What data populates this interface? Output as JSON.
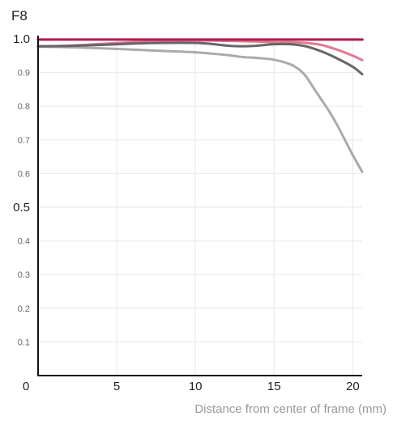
{
  "chart_data": {
    "type": "line",
    "title": "F8",
    "xlabel": "Distance from center of frame (mm)",
    "ylabel": "",
    "xlim": [
      0,
      20.6
    ],
    "ylim": [
      0,
      1.0
    ],
    "x_ticks": [
      {
        "value": 0,
        "label": "0"
      },
      {
        "value": 5,
        "label": "5"
      },
      {
        "value": 10,
        "label": "10"
      },
      {
        "value": 15,
        "label": "15"
      },
      {
        "value": 20,
        "label": "20"
      }
    ],
    "y_ticks": [
      {
        "value": 1.0,
        "label": "1.0",
        "major": true
      },
      {
        "value": 0.9,
        "label": "0.9",
        "major": false
      },
      {
        "value": 0.8,
        "label": "0.8",
        "major": false
      },
      {
        "value": 0.7,
        "label": "0.7",
        "major": false
      },
      {
        "value": 0.6,
        "label": "0.6",
        "major": false
      },
      {
        "value": 0.5,
        "label": "0.5",
        "major": true
      },
      {
        "value": 0.4,
        "label": "0.4",
        "major": false
      },
      {
        "value": 0.3,
        "label": "0.3",
        "major": false
      },
      {
        "value": 0.2,
        "label": "0.2",
        "major": false
      },
      {
        "value": 0.1,
        "label": "0.1",
        "major": false
      }
    ],
    "grid": true,
    "series": [
      {
        "color": "#aaaaaa",
        "x": [
          0,
          2,
          4,
          6,
          8,
          10,
          12,
          13,
          14,
          15,
          16,
          16.5,
          17,
          17.5,
          18,
          18.5,
          19,
          19.5,
          20,
          20.6
        ],
        "y": [
          0.977,
          0.975,
          0.972,
          0.968,
          0.964,
          0.96,
          0.952,
          0.946,
          0.943,
          0.938,
          0.925,
          0.912,
          0.89,
          0.855,
          0.82,
          0.785,
          0.745,
          0.7,
          0.655,
          0.605
        ]
      },
      {
        "color": "#e07a94",
        "x": [
          0,
          2,
          4,
          6,
          8,
          10,
          12,
          14,
          15,
          16,
          17,
          18,
          19,
          20,
          20.6
        ],
        "y": [
          0.978,
          0.98,
          0.985,
          0.99,
          0.993,
          0.995,
          0.994,
          0.992,
          0.99,
          0.99,
          0.988,
          0.982,
          0.968,
          0.95,
          0.937
        ]
      },
      {
        "color": "#666666",
        "x": [
          0,
          2,
          4,
          6,
          8,
          10,
          11,
          12,
          13,
          14,
          15,
          16,
          17,
          18,
          19,
          20,
          20.6
        ],
        "y": [
          0.978,
          0.979,
          0.982,
          0.986,
          0.988,
          0.988,
          0.985,
          0.98,
          0.978,
          0.98,
          0.984,
          0.984,
          0.978,
          0.963,
          0.942,
          0.917,
          0.895
        ]
      },
      {
        "color": "#b01a4a",
        "x": [
          0,
          5,
          10,
          15,
          20,
          20.6
        ],
        "y": [
          0.998,
          0.998,
          0.998,
          0.998,
          0.998,
          0.998
        ]
      }
    ]
  }
}
